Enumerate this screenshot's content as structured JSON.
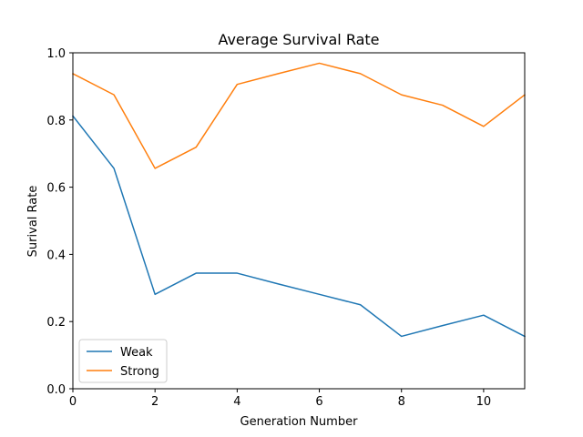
{
  "chart_data": {
    "type": "line",
    "title": "Average Survival Rate",
    "xlabel": "Generation Number",
    "ylabel": "Surival Rate",
    "xlim": [
      0,
      11
    ],
    "ylim": [
      0.0,
      1.0
    ],
    "xticks": [
      "0",
      "2",
      "4",
      "6",
      "8",
      "10"
    ],
    "yticks": [
      "0.0",
      "0.2",
      "0.4",
      "0.6",
      "0.8",
      "1.0"
    ],
    "x": [
      0,
      1,
      2,
      3,
      4,
      5,
      6,
      7,
      8,
      9,
      10,
      11
    ],
    "series": [
      {
        "name": "Weak",
        "color": "#1f77b4",
        "values": [
          0.812,
          0.656,
          0.281,
          0.344,
          0.344,
          0.312,
          0.281,
          0.25,
          0.156,
          0.188,
          0.219,
          0.156
        ]
      },
      {
        "name": "Strong",
        "color": "#ff7f0e",
        "values": [
          0.938,
          0.875,
          0.656,
          0.719,
          0.906,
          0.938,
          0.969,
          0.938,
          0.875,
          0.844,
          0.781,
          0.875
        ]
      }
    ],
    "grid": false,
    "legend_position": "lower-left"
  }
}
